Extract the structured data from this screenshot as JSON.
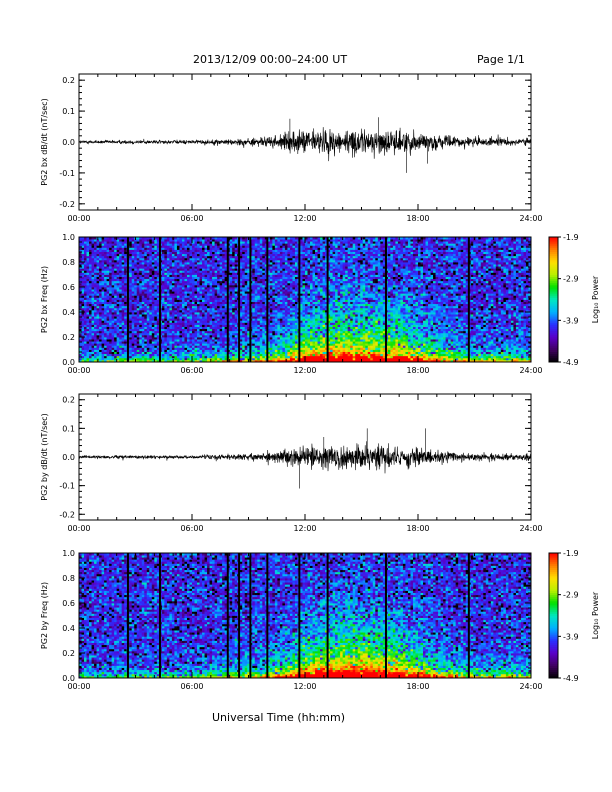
{
  "header": {
    "title": "2013/12/09  00:00–24:00 UT",
    "page": "Page 1/1",
    "xlabel": "Universal Time (hh:mm)"
  },
  "colors": {
    "trace": "#000000",
    "colormap": [
      "#000000",
      "#400060",
      "#5a00c8",
      "#2a30ff",
      "#00b0ff",
      "#00e8c0",
      "#00e000",
      "#b8f000",
      "#ffe000",
      "#ff8000",
      "#ff0000"
    ]
  },
  "chart_data": [
    {
      "type": "line",
      "ylabel": "PG2 bx dB/dt (nT/sec)",
      "xlim": [
        0,
        24
      ],
      "ylim": [
        -0.22,
        0.22
      ],
      "xticks": [
        "00:00",
        "06:00",
        "12:00",
        "18:00",
        "24:00"
      ],
      "yticks": [
        "-0.2",
        "-0.1",
        "0.0",
        "0.1",
        "0.2"
      ],
      "amplitude_envelope": {
        "hours": [
          0,
          3,
          6,
          8,
          10,
          11,
          12,
          13,
          14,
          15,
          16,
          17,
          18,
          19,
          20,
          21,
          22,
          23,
          24
        ],
        "amp": [
          0.006,
          0.008,
          0.008,
          0.012,
          0.02,
          0.035,
          0.05,
          0.055,
          0.05,
          0.05,
          0.048,
          0.05,
          0.04,
          0.03,
          0.022,
          0.02,
          0.016,
          0.016,
          0.016
        ]
      },
      "peaks": [
        {
          "x": 15.9,
          "y": 0.08
        },
        {
          "x": 17.4,
          "y": -0.1
        },
        {
          "x": 18.5,
          "y": -0.07
        },
        {
          "x": 11.2,
          "y": 0.075
        }
      ]
    },
    {
      "type": "heatmap",
      "ylabel": "PG2 bx Freq (Hz)",
      "colorbar_label": "Log₁₀ Power",
      "colorbar_ticks": [
        "-1.9",
        "-2.9",
        "-3.9",
        "-4.9"
      ],
      "zlim": [
        -4.9,
        -1.9
      ],
      "xlim": [
        0,
        24
      ],
      "ylim": [
        0,
        1.0
      ],
      "xticks": [
        "00:00",
        "06:00",
        "12:00",
        "18:00",
        "24:00"
      ],
      "yticks": [
        "0.0",
        "0.2",
        "0.4",
        "0.6",
        "0.8",
        "1.0"
      ],
      "gap_hours": [
        2.6,
        4.3,
        7.9,
        8.5,
        9.1,
        10.0,
        11.7,
        13.2,
        16.3,
        20.7
      ],
      "activity_hours": [
        0,
        3,
        6,
        8,
        10,
        11,
        12,
        13,
        14,
        15,
        16,
        17,
        18,
        19,
        20,
        21,
        22,
        23,
        24
      ],
      "activity_level": [
        0.1,
        0.15,
        0.15,
        0.25,
        0.35,
        0.5,
        0.7,
        0.8,
        0.85,
        0.8,
        0.75,
        0.75,
        0.6,
        0.45,
        0.35,
        0.3,
        0.25,
        0.25,
        0.25
      ]
    },
    {
      "type": "line",
      "ylabel": "PG2 by dB/dt (nT/sec)",
      "xlim": [
        0,
        24
      ],
      "ylim": [
        -0.22,
        0.22
      ],
      "xticks": [
        "00:00",
        "06:00",
        "12:00",
        "18:00",
        "24:00"
      ],
      "yticks": [
        "-0.2",
        "-0.1",
        "0.0",
        "0.1",
        "0.2"
      ],
      "amplitude_envelope": {
        "hours": [
          0,
          3,
          6,
          8,
          10,
          11,
          12,
          13,
          14,
          15,
          16,
          17,
          18,
          19,
          20,
          21,
          22,
          23,
          24
        ],
        "amp": [
          0.006,
          0.008,
          0.008,
          0.012,
          0.02,
          0.035,
          0.05,
          0.055,
          0.05,
          0.055,
          0.05,
          0.045,
          0.04,
          0.03,
          0.02,
          0.018,
          0.016,
          0.016,
          0.016
        ]
      },
      "peaks": [
        {
          "x": 11.7,
          "y": -0.11
        },
        {
          "x": 15.3,
          "y": 0.1
        },
        {
          "x": 18.4,
          "y": 0.1
        },
        {
          "x": 13.0,
          "y": 0.07
        }
      ]
    },
    {
      "type": "heatmap",
      "ylabel": "PG2 by Freq (Hz)",
      "colorbar_label": "Log₁₀ Power",
      "colorbar_ticks": [
        "-1.9",
        "-2.9",
        "-3.9",
        "-4.9"
      ],
      "zlim": [
        -4.9,
        -1.9
      ],
      "xlim": [
        0,
        24
      ],
      "ylim": [
        0,
        1.0
      ],
      "xticks": [
        "00:00",
        "06:00",
        "12:00",
        "18:00",
        "24:00"
      ],
      "yticks": [
        "0.0",
        "0.2",
        "0.4",
        "0.6",
        "0.8",
        "1.0"
      ],
      "gap_hours": [
        2.6,
        4.3,
        7.9,
        8.5,
        9.1,
        10.0,
        11.7,
        13.2,
        16.3,
        20.7
      ],
      "activity_hours": [
        0,
        3,
        6,
        8,
        10,
        11,
        12,
        13,
        14,
        15,
        16,
        17,
        18,
        19,
        20,
        21,
        22,
        23,
        24
      ],
      "activity_level": [
        0.1,
        0.15,
        0.15,
        0.25,
        0.35,
        0.5,
        0.7,
        0.8,
        0.85,
        0.85,
        0.8,
        0.75,
        0.6,
        0.45,
        0.35,
        0.3,
        0.25,
        0.25,
        0.25
      ]
    }
  ]
}
